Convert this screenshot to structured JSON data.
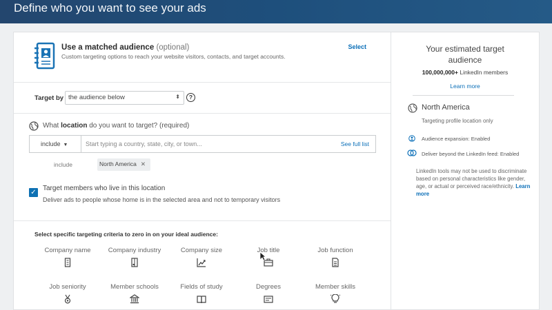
{
  "header": {
    "title": "Define who you want to see your ads"
  },
  "matched_audience": {
    "title": "Use a matched audience",
    "optional": "(optional)",
    "description": "Custom targeting options to reach your website visitors, contacts, and target accounts.",
    "select_label": "Select"
  },
  "target_by": {
    "label": "Target by",
    "value": "the audience below"
  },
  "location": {
    "question_prefix": "What",
    "question_bold": "location",
    "question_suffix": "do you want to target? (required)",
    "include_dropdown": "include",
    "placeholder": "Start typing a country, state, city, or town...",
    "see_full_list": "See full list",
    "include_label": "include",
    "selected_tag": "North America",
    "checkbox_title": "Target members who live in this location",
    "checkbox_desc": "Deliver ads to people whose home is in the selected area and not to temporary visitors",
    "checkbox_checked": true
  },
  "criteria": {
    "title": "Select specific targeting criteria to zero in on your ideal audience:",
    "items": [
      {
        "label": "Company name",
        "icon": "building-icon"
      },
      {
        "label": "Company industry",
        "icon": "industry-icon"
      },
      {
        "label": "Company size",
        "icon": "growth-chart-icon"
      },
      {
        "label": "Job title",
        "icon": "briefcase-icon"
      },
      {
        "label": "Job function",
        "icon": "document-icon"
      },
      {
        "label": "Job seniority",
        "icon": "medal-icon"
      },
      {
        "label": "Member schools",
        "icon": "school-icon"
      },
      {
        "label": "Fields of study",
        "icon": "book-icon"
      },
      {
        "label": "Degrees",
        "icon": "diploma-icon"
      },
      {
        "label": "Member skills",
        "icon": "lightbulb-icon"
      }
    ]
  },
  "estimate": {
    "title_line1": "Your estimated target",
    "title_line2": "audience",
    "count": "100,000,000+",
    "count_suffix": "LinkedIn members",
    "learn_more": "Learn more",
    "location_title": "North America",
    "location_sub": "Targeting profile location only",
    "audience_expansion": "Audience expansion:  Enabled",
    "deliver_beyond": "Deliver beyond the LinkedIn feed:  Enabled",
    "note": "LinkedIn tools may not be used to discriminate based on personal characteristics like gender, age, or actual or perceived race/ethnicity.",
    "note_link": "Learn more"
  },
  "colors": {
    "accent": "#0b6fb8",
    "header": "#1e4f7c"
  }
}
